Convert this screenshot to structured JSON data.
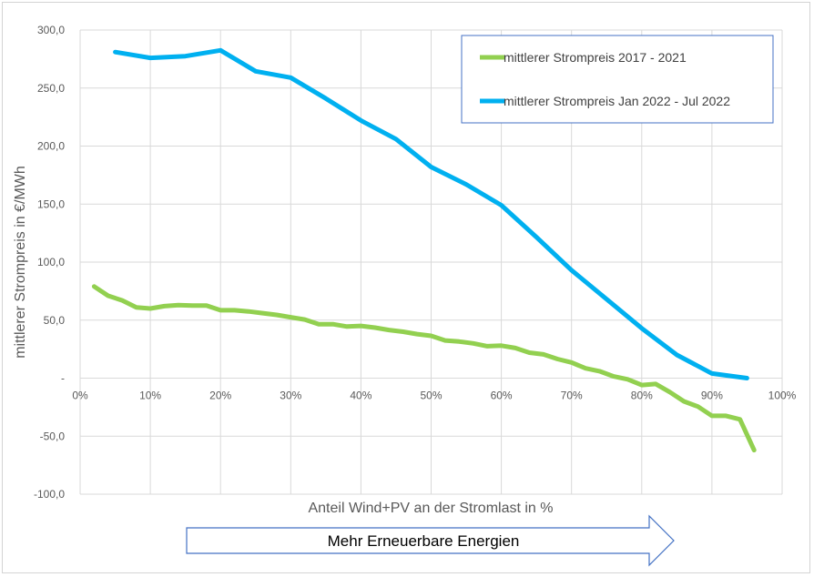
{
  "chart_data": {
    "type": "line",
    "xlabel": "Anteil Wind+PV an der Stromlast in %",
    "ylabel": "mittlerer Strompreis in €/MWh",
    "xlim": [
      0,
      100
    ],
    "ylim": [
      -100,
      300
    ],
    "x_ticks": [
      {
        "value": 0,
        "label": "0%"
      },
      {
        "value": 10,
        "label": "10%"
      },
      {
        "value": 20,
        "label": "20%"
      },
      {
        "value": 30,
        "label": "30%"
      },
      {
        "value": 40,
        "label": "40%"
      },
      {
        "value": 50,
        "label": "50%"
      },
      {
        "value": 60,
        "label": "60%"
      },
      {
        "value": 70,
        "label": "70%"
      },
      {
        "value": 80,
        "label": "80%"
      },
      {
        "value": 90,
        "label": "90%"
      },
      {
        "value": 100,
        "label": "100%"
      }
    ],
    "y_ticks": [
      {
        "value": 300,
        "label": "300,0"
      },
      {
        "value": 250,
        "label": "250,0"
      },
      {
        "value": 200,
        "label": "200,0"
      },
      {
        "value": 150,
        "label": "150,0"
      },
      {
        "value": 100,
        "label": "100,0"
      },
      {
        "value": 50,
        "label": "50,0"
      },
      {
        "value": 0,
        "label": "-"
      },
      {
        "value": -50,
        "label": "-50,0"
      },
      {
        "value": -100,
        "label": "-100,0"
      }
    ],
    "grid": true,
    "legend_position": "top-right",
    "series": [
      {
        "name": "mittlerer Strompreis 2017 - 2021",
        "color": "#92d050",
        "x": [
          2,
          4,
          6,
          8,
          10,
          12,
          14,
          16,
          18,
          20,
          22,
          24,
          26,
          28,
          30,
          32,
          34,
          36,
          38,
          40,
          42,
          44,
          46,
          48,
          50,
          52,
          54,
          56,
          58,
          60,
          62,
          64,
          66,
          68,
          70,
          72,
          74,
          76,
          78,
          80,
          82,
          84,
          86,
          88,
          90,
          92,
          94,
          96
        ],
        "values": [
          79,
          71,
          67,
          61,
          60,
          62,
          63,
          62.5,
          62.5,
          58.5,
          58.5,
          57.5,
          56,
          54.5,
          52.5,
          50.5,
          46.5,
          46.5,
          44.5,
          45,
          43.5,
          41.5,
          40,
          38,
          36.5,
          32.5,
          31.5,
          30,
          27.5,
          28,
          26,
          22,
          20.5,
          16.5,
          13.5,
          8.5,
          6,
          1.5,
          -1,
          -6,
          -5,
          -12,
          -20,
          -24.5,
          -32.5,
          -32.5,
          -35.5,
          -62
        ]
      },
      {
        "name": "mittlerer Strompreis Jan 2022 - Jul 2022",
        "color": "#00b0f0",
        "x": [
          5,
          10,
          15,
          20,
          25,
          30,
          35,
          40,
          45,
          50,
          55,
          60,
          65,
          70,
          75,
          80,
          85,
          90,
          95
        ],
        "values": [
          281,
          276,
          277.5,
          282.5,
          264.5,
          259,
          241,
          222,
          206,
          182,
          167,
          149,
          121.5,
          93,
          68,
          43,
          20,
          4,
          0
        ]
      }
    ]
  },
  "annotation": {
    "arrow_label": "Mehr Erneuerbare Energien"
  }
}
